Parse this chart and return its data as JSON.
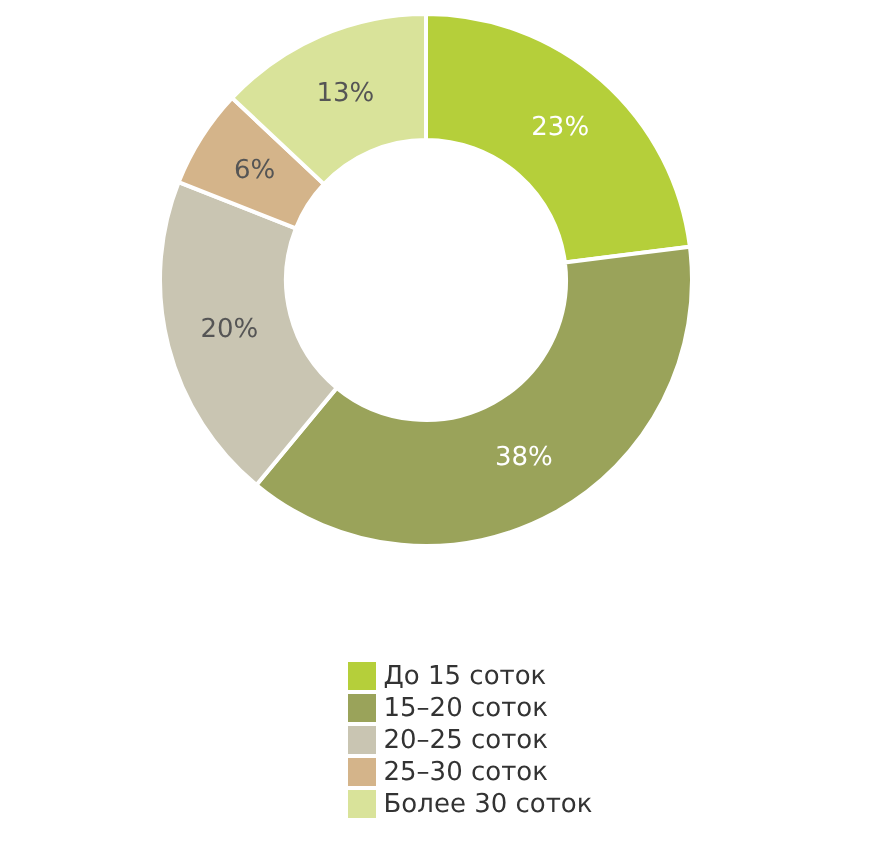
{
  "chart_data": {
    "type": "donut",
    "categories": [
      "До 15 соток",
      "15–20 соток",
      "20–25 соток",
      "25–30 соток",
      "Более 30 соток"
    ],
    "values": [
      23,
      38,
      20,
      6,
      13
    ],
    "colors": [
      "#b5cf3a",
      "#9aa35a",
      "#c9c5b2",
      "#d4b48a",
      "#d9e39a"
    ],
    "value_labels": [
      "23%",
      "38%",
      "20%",
      "6%",
      "13%"
    ],
    "legend": "bottom"
  }
}
